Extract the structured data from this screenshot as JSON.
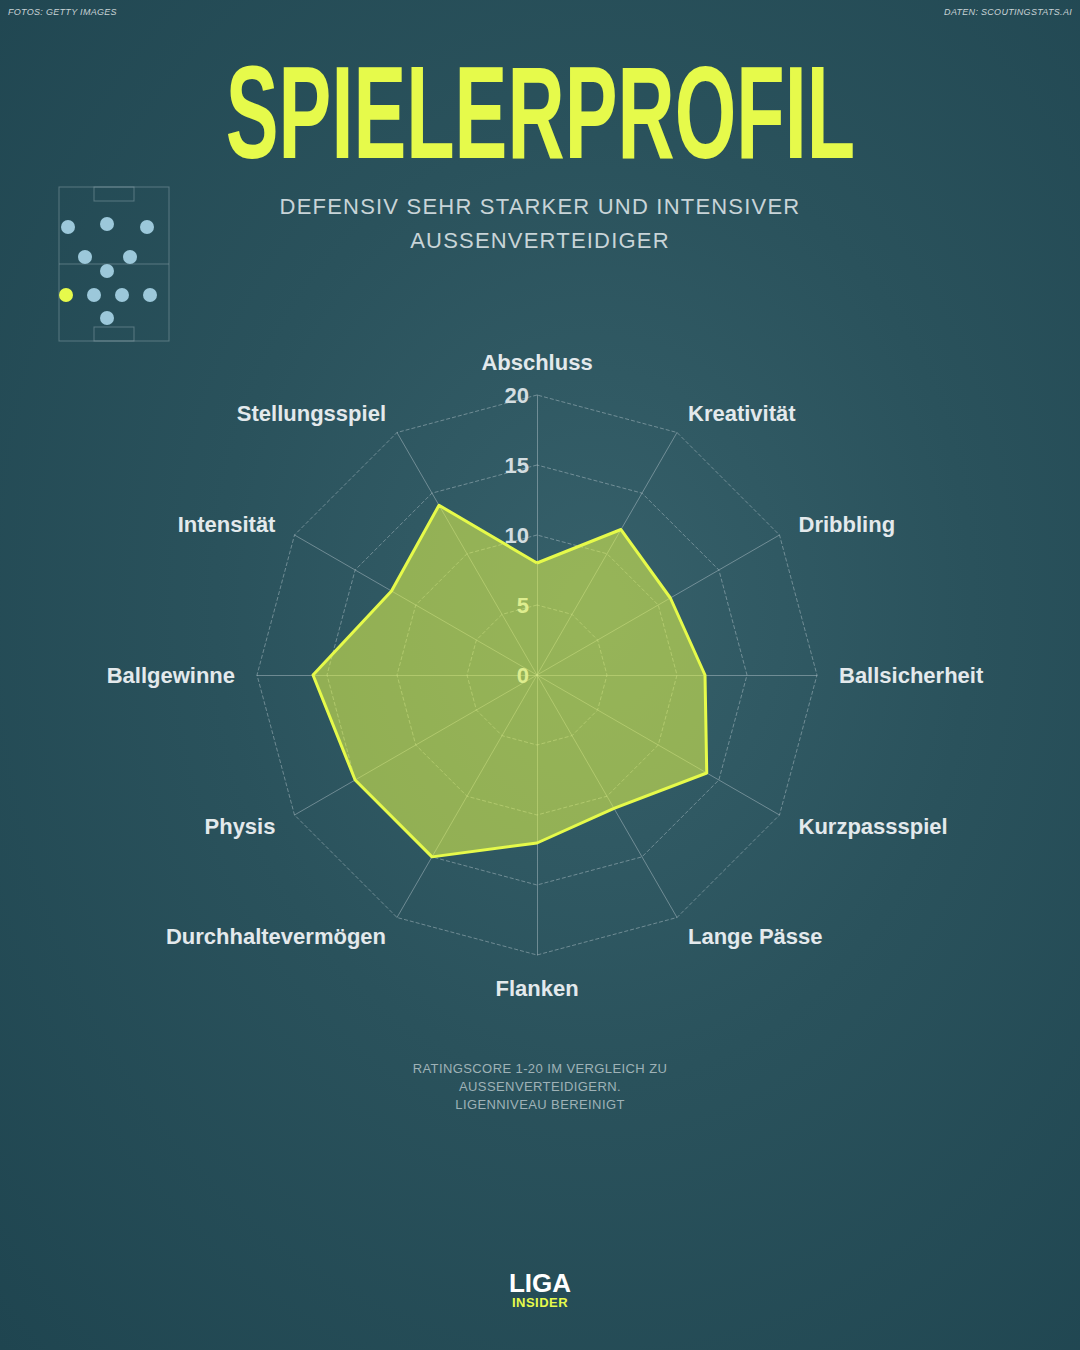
{
  "header": {
    "credit_left": "FOTOS: GETTY IMAGES",
    "credit_right": "DATEN: SCOUTINGSTATS.AI"
  },
  "chart_data": {
    "type": "radar",
    "title": "SPIELERPROFIL",
    "subtitle": [
      "DEFENSIV SEHR STARKER UND INTENSIVER",
      "AUSSENVERTEIDIGER"
    ],
    "categories": [
      "Abschluss",
      "Kreativität",
      "Dribbling",
      "Ballsicherheit",
      "Kurzpassspiel",
      "Lange Pässe",
      "Flanken",
      "Durchhaltevermögen",
      "Physis",
      "Ballgewinne",
      "Intensität",
      "Stellungsspiel"
    ],
    "values": [
      8,
      12,
      11,
      12,
      14,
      11,
      12,
      15,
      15,
      16,
      12,
      14
    ],
    "color": "#e6fa4b",
    "ylim": [
      0,
      20
    ],
    "yticks": [
      0,
      5,
      10,
      15,
      20
    ],
    "grid": true,
    "annotation": [
      "RATINGSCORE 1-20 IM VERGLEICH ZU",
      "AUSSENVERTEIDIGERN.",
      "LIGENNIVEAU BEREINIGT"
    ]
  },
  "footer": {
    "logo_top": "LIGA",
    "logo_bottom": "INSIDER"
  }
}
